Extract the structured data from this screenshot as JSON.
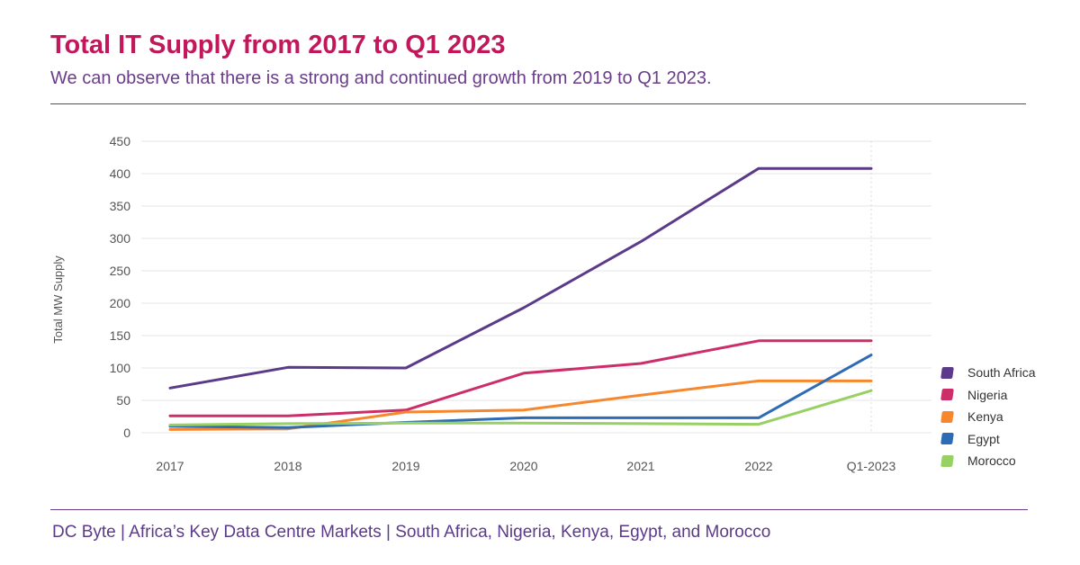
{
  "header": {
    "title": "Total IT Supply from 2017 to Q1 2023",
    "subtitle": "We can observe that there is a strong and continued growth from 2019 to Q1 2023."
  },
  "footer": {
    "text": "DC Byte | Africa’s Key Data Centre Markets | South Africa, Nigeria, Kenya, Egypt, and Morocco"
  },
  "colors": {
    "title": "#c2185b",
    "accent": "#6a3d8a",
    "grid": "#e6e6e6",
    "axis_text": "#555555"
  },
  "chart_data": {
    "type": "line",
    "title": "Total IT Supply from 2017 to Q1 2023",
    "xlabel": "",
    "ylabel": "Total MW Supply",
    "categories": [
      "2017",
      "2018",
      "2019",
      "2020",
      "2021",
      "2022",
      "Q1-2023"
    ],
    "ylim": [
      0,
      450
    ],
    "yticks": [
      0,
      50,
      100,
      150,
      200,
      250,
      300,
      350,
      400,
      450
    ],
    "grid": true,
    "legend_position": "right",
    "series": [
      {
        "name": "South Africa",
        "color": "#5b3a8a",
        "values": [
          69,
          101,
          100,
          193,
          295,
          408,
          408
        ]
      },
      {
        "name": "Nigeria",
        "color": "#cc2e6a",
        "values": [
          26,
          26,
          35,
          92,
          107,
          142,
          142
        ]
      },
      {
        "name": "Kenya",
        "color": "#f7872d",
        "values": [
          5,
          6,
          32,
          35,
          58,
          80,
          80
        ]
      },
      {
        "name": "Egypt",
        "color": "#2d6bb5",
        "values": [
          10,
          8,
          16,
          23,
          23,
          23,
          120
        ]
      },
      {
        "name": "Morocco",
        "color": "#97d063",
        "values": [
          12,
          14,
          15,
          15,
          14,
          13,
          65
        ]
      }
    ]
  }
}
